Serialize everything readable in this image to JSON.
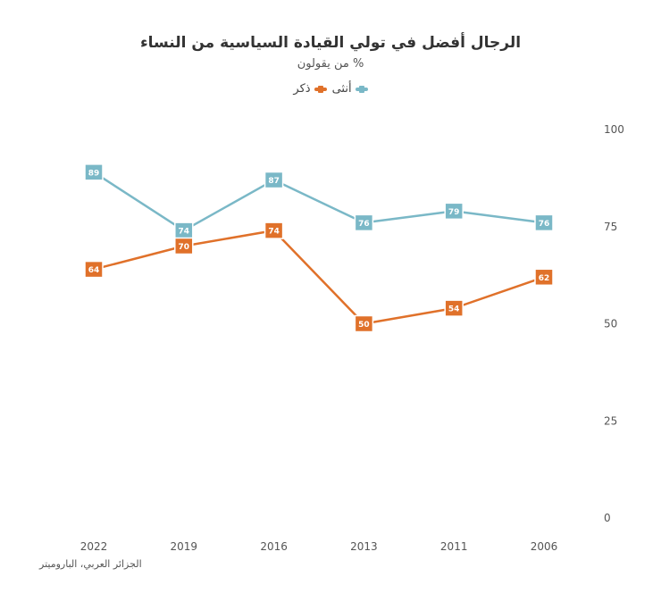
{
  "chart_data": {
    "type": "line",
    "title": "الرجال أفضل في تولي القيادة السياسية من النساء",
    "subtitle": "% من يقولون",
    "source": "الجزائر العربي، الباروميتر",
    "categories": [
      "2022",
      "2019",
      "2016",
      "2013",
      "2011",
      "2006"
    ],
    "series": [
      {
        "name": "أنثى",
        "color": "#7ab8c7",
        "values": [
          89,
          74,
          87,
          76,
          79,
          76
        ]
      },
      {
        "name": "ذكر",
        "color": "#e0712a",
        "values": [
          64,
          70,
          74,
          50,
          54,
          62
        ]
      }
    ],
    "ylim": [
      0,
      100
    ],
    "yticks": [
      0,
      25,
      50,
      75,
      100
    ],
    "yaxis_side": "right",
    "grid": false,
    "legend_placement": "top-center"
  }
}
